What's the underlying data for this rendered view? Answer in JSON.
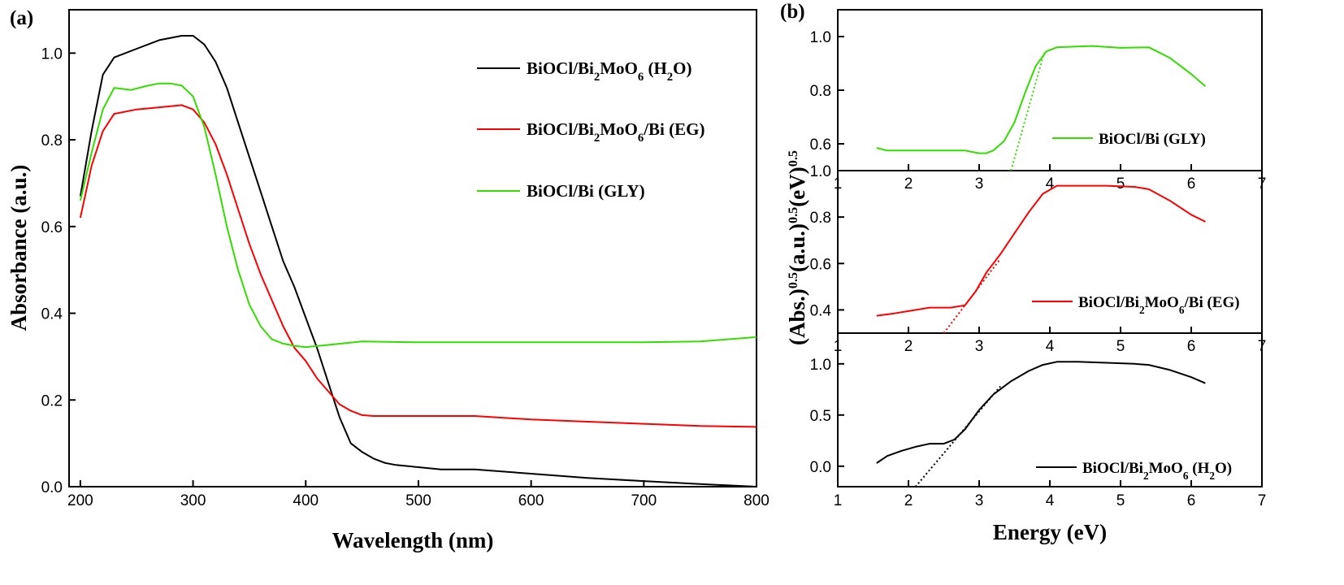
{
  "chart_data": [
    {
      "panel_label": "(a)",
      "type": "line",
      "xlabel": "Wavelength (nm)",
      "ylabel": "Absorbance (a.u.)",
      "xlim": [
        190,
        800
      ],
      "ylim": [
        0.0,
        1.1
      ],
      "xticks": [
        200,
        300,
        400,
        500,
        600,
        700,
        800
      ],
      "yticks": [
        0.0,
        0.2,
        0.4,
        0.6,
        0.8,
        1.0
      ],
      "xtick_labels": [
        "200",
        "300",
        "400",
        "500",
        "600",
        "700",
        "800"
      ],
      "ytick_labels": [
        "0.0",
        "0.2",
        "0.4",
        "0.6",
        "0.8",
        "1.0"
      ],
      "grid": false,
      "legend_position": "right",
      "series": [
        {
          "legend_base": "BiOCl/Bi",
          "legend_sub1": "2",
          "legend_mid": "MoO",
          "legend_sub2": "6",
          "legend_post": " (H",
          "legend_sub3": "2",
          "legend_end": "O)",
          "color": "#000000",
          "x": [
            200,
            210,
            220,
            230,
            250,
            270,
            290,
            300,
            310,
            320,
            330,
            340,
            350,
            360,
            370,
            380,
            390,
            400,
            410,
            420,
            430,
            440,
            450,
            460,
            470,
            480,
            500,
            520,
            550,
            600,
            650,
            700,
            750,
            800
          ],
          "y": [
            0.67,
            0.82,
            0.95,
            0.99,
            1.01,
            1.03,
            1.04,
            1.04,
            1.02,
            0.98,
            0.92,
            0.84,
            0.76,
            0.68,
            0.6,
            0.52,
            0.46,
            0.39,
            0.32,
            0.24,
            0.16,
            0.1,
            0.08,
            0.065,
            0.055,
            0.05,
            0.045,
            0.04,
            0.04,
            0.03,
            0.02,
            0.013,
            0.006,
            0.0
          ]
        },
        {
          "legend_base": "BiOCl/Bi",
          "legend_sub1": "2",
          "legend_mid": "MoO",
          "legend_sub2": "6",
          "legend_post": "/Bi (EG)",
          "legend_sub3": "",
          "legend_end": "",
          "color": "#ff0000",
          "x": [
            200,
            210,
            220,
            230,
            250,
            270,
            290,
            300,
            310,
            320,
            330,
            340,
            350,
            360,
            370,
            380,
            390,
            400,
            410,
            420,
            430,
            440,
            450,
            460,
            480,
            500,
            550,
            600,
            650,
            700,
            750,
            800
          ],
          "y": [
            0.62,
            0.74,
            0.82,
            0.86,
            0.87,
            0.875,
            0.88,
            0.87,
            0.84,
            0.79,
            0.72,
            0.64,
            0.56,
            0.49,
            0.43,
            0.37,
            0.32,
            0.29,
            0.25,
            0.22,
            0.19,
            0.175,
            0.165,
            0.163,
            0.163,
            0.163,
            0.163,
            0.155,
            0.15,
            0.145,
            0.14,
            0.138
          ]
        },
        {
          "legend_base": "BiOCl/Bi (GLY)",
          "legend_sub1": "",
          "legend_mid": "",
          "legend_sub2": "",
          "legend_post": "",
          "legend_sub3": "",
          "legend_end": "",
          "color": "#33dd00",
          "x": [
            200,
            210,
            220,
            230,
            245,
            260,
            270,
            280,
            290,
            300,
            310,
            320,
            330,
            340,
            350,
            360,
            370,
            380,
            390,
            400,
            420,
            450,
            500,
            550,
            600,
            650,
            700,
            750,
            800
          ],
          "y": [
            0.66,
            0.77,
            0.87,
            0.92,
            0.915,
            0.925,
            0.93,
            0.93,
            0.925,
            0.9,
            0.83,
            0.72,
            0.6,
            0.5,
            0.42,
            0.37,
            0.34,
            0.33,
            0.325,
            0.322,
            0.327,
            0.335,
            0.333,
            0.333,
            0.333,
            0.333,
            0.333,
            0.335,
            0.345
          ]
        }
      ]
    },
    {
      "panel_label": "(b)",
      "type": "line",
      "xlabel": "Energy (eV)",
      "ylabel_parts": [
        "(Abs.)",
        "0.5",
        "(a.u.)",
        "0.5",
        "(eV)",
        "0.5"
      ],
      "xlim": [
        1,
        7
      ],
      "xticks": [
        1,
        2,
        3,
        4,
        5,
        6,
        7
      ],
      "xtick_labels": [
        "1",
        "2",
        "3",
        "4",
        "5",
        "6",
        "7"
      ],
      "grid": false,
      "subplots": [
        {
          "name": "top",
          "ylim": [
            0.5,
            1.1
          ],
          "yticks": [
            0.6,
            0.8,
            1.0
          ],
          "ytick_labels": [
            "0.6",
            "0.8",
            "1.0"
          ],
          "legend_base": "BiOCl/Bi (GLY)",
          "legend_sub1": "",
          "legend_mid": "",
          "legend_sub2": "",
          "legend_post": "",
          "legend_sub3": "",
          "legend_end": "",
          "legend_position": "right",
          "color": "#33dd00",
          "x": [
            1.55,
            1.7,
            2.0,
            2.5,
            2.8,
            3.0,
            3.1,
            3.2,
            3.35,
            3.5,
            3.65,
            3.8,
            3.95,
            4.1,
            4.3,
            4.6,
            5.0,
            5.4,
            5.7,
            6.0,
            6.2
          ],
          "y": [
            0.585,
            0.575,
            0.575,
            0.575,
            0.575,
            0.565,
            0.565,
            0.575,
            0.61,
            0.68,
            0.79,
            0.89,
            0.945,
            0.96,
            0.962,
            0.965,
            0.958,
            0.96,
            0.92,
            0.86,
            0.815
          ],
          "tangent": {
            "x": [
              3.45,
              3.92
            ],
            "y": [
              0.5,
              0.94
            ]
          }
        },
        {
          "name": "middle",
          "ylim": [
            0.3,
            1.0
          ],
          "yticks": [
            0.4,
            0.6,
            0.8,
            1.0
          ],
          "ytick_labels": [
            "0.4",
            "0.6",
            "0.8",
            "1.0"
          ],
          "legend_base": "BiOCl/Bi",
          "legend_sub1": "2",
          "legend_mid": "MoO",
          "legend_sub2": "6",
          "legend_post": "/Bi (EG)",
          "legend_sub3": "",
          "legend_end": "",
          "legend_position": "right",
          "color": "#ff0000",
          "x": [
            1.55,
            1.8,
            2.0,
            2.3,
            2.6,
            2.8,
            2.95,
            3.1,
            3.3,
            3.5,
            3.7,
            3.9,
            4.1,
            4.4,
            4.8,
            5.2,
            5.4,
            5.7,
            6.0,
            6.2
          ],
          "y": [
            0.375,
            0.385,
            0.395,
            0.41,
            0.41,
            0.42,
            0.48,
            0.56,
            0.64,
            0.73,
            0.82,
            0.9,
            0.935,
            0.935,
            0.935,
            0.93,
            0.92,
            0.87,
            0.81,
            0.78
          ],
          "tangent": {
            "x": [
              2.5,
              3.3
            ],
            "y": [
              0.3,
              0.62
            ]
          }
        },
        {
          "name": "bottom",
          "ylim": [
            -0.2,
            1.3
          ],
          "yticks": [
            0.0,
            0.5,
            1.0
          ],
          "ytick_labels": [
            "0.0",
            "0.5",
            "1.0"
          ],
          "legend_base": "BiOCl/Bi",
          "legend_sub1": "2",
          "legend_mid": "MoO",
          "legend_sub2": "6",
          "legend_post": " (H",
          "legend_sub3": "2",
          "legend_end": "O)",
          "legend_position": "bottom-right",
          "color": "#000000",
          "x": [
            1.55,
            1.7,
            1.9,
            2.1,
            2.3,
            2.5,
            2.65,
            2.8,
            3.0,
            3.2,
            3.45,
            3.7,
            3.9,
            4.1,
            4.4,
            4.8,
            5.2,
            5.4,
            5.7,
            6.0,
            6.2
          ],
          "y": [
            0.03,
            0.1,
            0.15,
            0.19,
            0.22,
            0.22,
            0.26,
            0.36,
            0.55,
            0.7,
            0.83,
            0.93,
            0.99,
            1.02,
            1.02,
            1.01,
            1.0,
            0.99,
            0.94,
            0.87,
            0.81
          ],
          "tangent": {
            "x": [
              2.1,
              3.3
            ],
            "y": [
              -0.2,
              0.78
            ]
          }
        }
      ]
    }
  ]
}
